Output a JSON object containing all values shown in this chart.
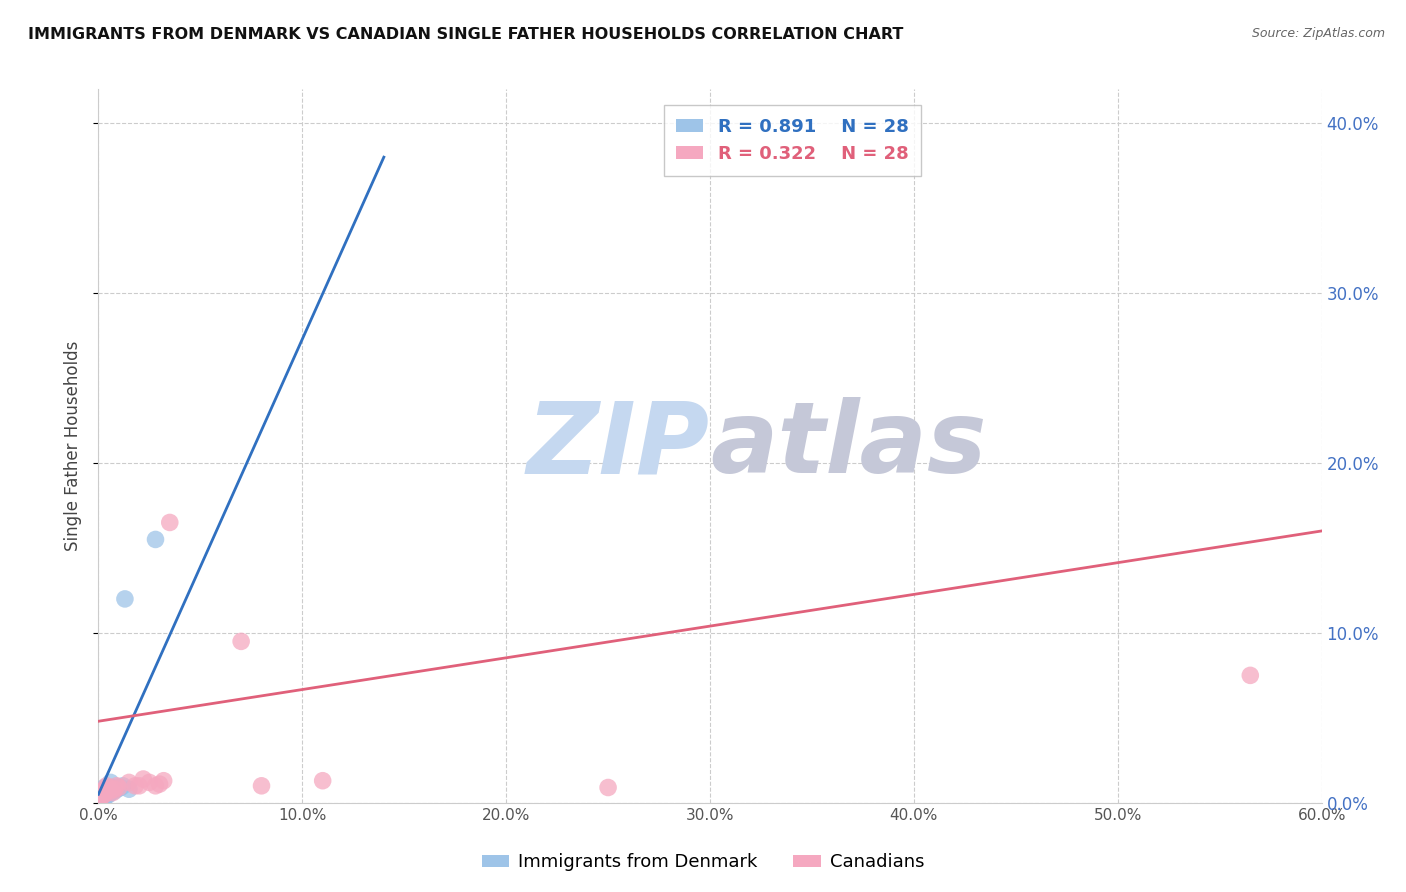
{
  "title": "IMMIGRANTS FROM DENMARK VS CANADIAN SINGLE FATHER HOUSEHOLDS CORRELATION CHART",
  "source": "Source: ZipAtlas.com",
  "ylabel": "Single Father Households",
  "xlim": [
    0.0,
    0.6
  ],
  "ylim": [
    0.0,
    0.42
  ],
  "xticks": [
    0.0,
    0.1,
    0.2,
    0.3,
    0.4,
    0.5,
    0.6
  ],
  "yticks_right": [
    0.0,
    0.1,
    0.2,
    0.3,
    0.4
  ],
  "blue_R": 0.891,
  "blue_N": 28,
  "pink_R": 0.322,
  "pink_N": 28,
  "blue_scatter_x": [
    0.001,
    0.001,
    0.001,
    0.001,
    0.001,
    0.002,
    0.002,
    0.002,
    0.002,
    0.003,
    0.003,
    0.003,
    0.003,
    0.004,
    0.004,
    0.005,
    0.005,
    0.006,
    0.006,
    0.007,
    0.008,
    0.009,
    0.01,
    0.011,
    0.012,
    0.013,
    0.015,
    0.028
  ],
  "blue_scatter_y": [
    0.001,
    0.002,
    0.003,
    0.004,
    0.005,
    0.002,
    0.003,
    0.005,
    0.007,
    0.003,
    0.005,
    0.007,
    0.009,
    0.004,
    0.007,
    0.005,
    0.008,
    0.006,
    0.012,
    0.009,
    0.007,
    0.008,
    0.009,
    0.009,
    0.01,
    0.12,
    0.008,
    0.155
  ],
  "pink_scatter_x": [
    0.001,
    0.001,
    0.002,
    0.002,
    0.003,
    0.003,
    0.004,
    0.004,
    0.005,
    0.006,
    0.007,
    0.008,
    0.009,
    0.01,
    0.015,
    0.018,
    0.02,
    0.022,
    0.025,
    0.028,
    0.03,
    0.032,
    0.035,
    0.07,
    0.08,
    0.11,
    0.25,
    0.565
  ],
  "pink_scatter_y": [
    0.003,
    0.005,
    0.004,
    0.006,
    0.005,
    0.008,
    0.007,
    0.01,
    0.009,
    0.007,
    0.006,
    0.008,
    0.01,
    0.009,
    0.012,
    0.01,
    0.01,
    0.014,
    0.012,
    0.01,
    0.011,
    0.013,
    0.165,
    0.095,
    0.01,
    0.013,
    0.009,
    0.075
  ],
  "blue_line_x": [
    0.0,
    0.14
  ],
  "blue_line_y": [
    0.005,
    0.38
  ],
  "pink_line_x": [
    0.0,
    0.6
  ],
  "pink_line_y": [
    0.048,
    0.16
  ],
  "blue_scatter_color": "#9ec4e8",
  "pink_scatter_color": "#f5a8c0",
  "blue_line_color": "#3070c0",
  "pink_line_color": "#e0607a",
  "right_axis_color": "#4472c4",
  "watermark_zip_color": "#c5d8f0",
  "watermark_atlas_color": "#c5c8d8",
  "background_color": "#ffffff",
  "grid_color": "#cccccc",
  "legend_box_color": "#e8eef8"
}
